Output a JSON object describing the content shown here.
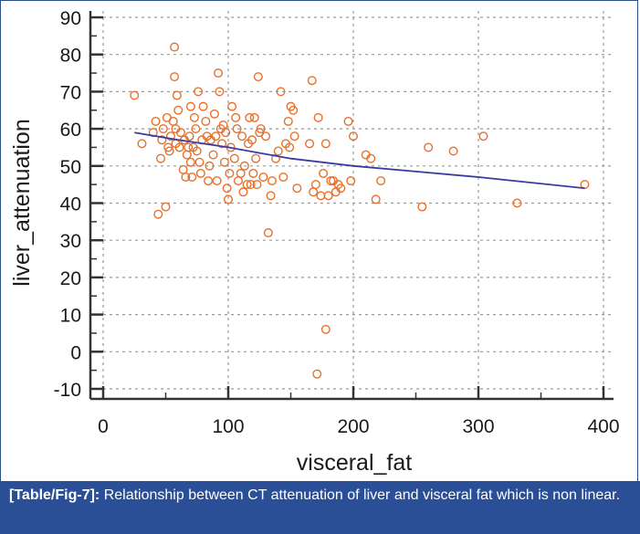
{
  "chart_data": {
    "type": "scatter",
    "title": "",
    "xlabel": "visceral_fat",
    "ylabel": "liver_attenuation",
    "xlim": [
      0,
      400
    ],
    "ylim": [
      -10,
      90
    ],
    "xticks": [
      0,
      100,
      200,
      300,
      400
    ],
    "yticks": [
      -10,
      0,
      10,
      20,
      30,
      40,
      50,
      60,
      70,
      80,
      90
    ],
    "grid": true,
    "marker_color": "#e8702a",
    "fit_line_color": "#3a3aa0",
    "fit_line": {
      "type": "smoothed trend",
      "points": [
        [
          25,
          59
        ],
        [
          60,
          57
        ],
        [
          100,
          55
        ],
        [
          150,
          52
        ],
        [
          200,
          50
        ],
        [
          250,
          48.5
        ],
        [
          300,
          47
        ],
        [
          385,
          44
        ]
      ]
    },
    "points": [
      [
        25,
        69
      ],
      [
        31,
        56
      ],
      [
        40,
        59
      ],
      [
        42,
        62
      ],
      [
        44,
        37
      ],
      [
        46,
        52
      ],
      [
        47,
        57
      ],
      [
        48,
        60
      ],
      [
        50,
        39
      ],
      [
        51,
        63
      ],
      [
        52,
        55
      ],
      [
        53,
        54
      ],
      [
        54,
        58
      ],
      [
        56,
        62
      ],
      [
        57,
        82
      ],
      [
        57,
        74
      ],
      [
        58,
        60
      ],
      [
        58,
        56
      ],
      [
        59,
        69
      ],
      [
        60,
        65
      ],
      [
        61,
        55
      ],
      [
        62,
        59
      ],
      [
        64,
        49
      ],
      [
        65,
        57
      ],
      [
        66,
        47
      ],
      [
        67,
        53
      ],
      [
        68,
        55
      ],
      [
        69,
        58
      ],
      [
        70,
        66
      ],
      [
        70,
        51
      ],
      [
        71,
        47
      ],
      [
        72,
        55
      ],
      [
        73,
        63
      ],
      [
        74,
        60
      ],
      [
        75,
        54
      ],
      [
        76,
        70
      ],
      [
        77,
        51
      ],
      [
        78,
        48
      ],
      [
        79,
        57
      ],
      [
        80,
        66
      ],
      [
        82,
        62
      ],
      [
        83,
        58
      ],
      [
        84,
        46
      ],
      [
        85,
        50
      ],
      [
        86,
        57
      ],
      [
        88,
        53
      ],
      [
        89,
        64
      ],
      [
        90,
        58
      ],
      [
        91,
        46
      ],
      [
        92,
        75
      ],
      [
        93,
        70
      ],
      [
        94,
        60
      ],
      [
        95,
        56
      ],
      [
        96,
        61
      ],
      [
        97,
        51
      ],
      [
        98,
        59
      ],
      [
        99,
        44
      ],
      [
        100,
        41
      ],
      [
        101,
        48
      ],
      [
        102,
        55
      ],
      [
        103,
        66
      ],
      [
        105,
        52
      ],
      [
        106,
        63
      ],
      [
        107,
        60
      ],
      [
        108,
        46
      ],
      [
        110,
        48
      ],
      [
        111,
        58
      ],
      [
        112,
        43
      ],
      [
        113,
        50
      ],
      [
        115,
        45
      ],
      [
        116,
        56
      ],
      [
        117,
        63
      ],
      [
        118,
        45
      ],
      [
        119,
        57
      ],
      [
        120,
        48
      ],
      [
        121,
        63
      ],
      [
        122,
        52
      ],
      [
        123,
        45
      ],
      [
        124,
        74
      ],
      [
        125,
        59
      ],
      [
        126,
        60
      ],
      [
        128,
        47
      ],
      [
        130,
        58
      ],
      [
        132,
        32
      ],
      [
        134,
        42
      ],
      [
        135,
        46
      ],
      [
        138,
        52
      ],
      [
        140,
        54
      ],
      [
        142,
        70
      ],
      [
        144,
        47
      ],
      [
        146,
        56
      ],
      [
        148,
        62
      ],
      [
        149,
        55
      ],
      [
        150,
        66
      ],
      [
        152,
        65
      ],
      [
        153,
        58
      ],
      [
        155,
        44
      ],
      [
        165,
        56
      ],
      [
        167,
        73
      ],
      [
        168,
        43
      ],
      [
        170,
        45
      ],
      [
        171,
        -6
      ],
      [
        172,
        63
      ],
      [
        174,
        42
      ],
      [
        176,
        48
      ],
      [
        178,
        6
      ],
      [
        178,
        56
      ],
      [
        180,
        42
      ],
      [
        182,
        46
      ],
      [
        184,
        46
      ],
      [
        186,
        43
      ],
      [
        188,
        45
      ],
      [
        190,
        44
      ],
      [
        196,
        62
      ],
      [
        198,
        46
      ],
      [
        200,
        58
      ],
      [
        210,
        53
      ],
      [
        214,
        52
      ],
      [
        218,
        41
      ],
      [
        222,
        46
      ],
      [
        255,
        39
      ],
      [
        260,
        55
      ],
      [
        280,
        54
      ],
      [
        304,
        58
      ],
      [
        331,
        40
      ],
      [
        385,
        45
      ]
    ]
  },
  "caption": {
    "label": "[Table/Fig-7]:",
    "text": " Relationship between CT attenuation of liver and visceral fat which is non linear."
  }
}
